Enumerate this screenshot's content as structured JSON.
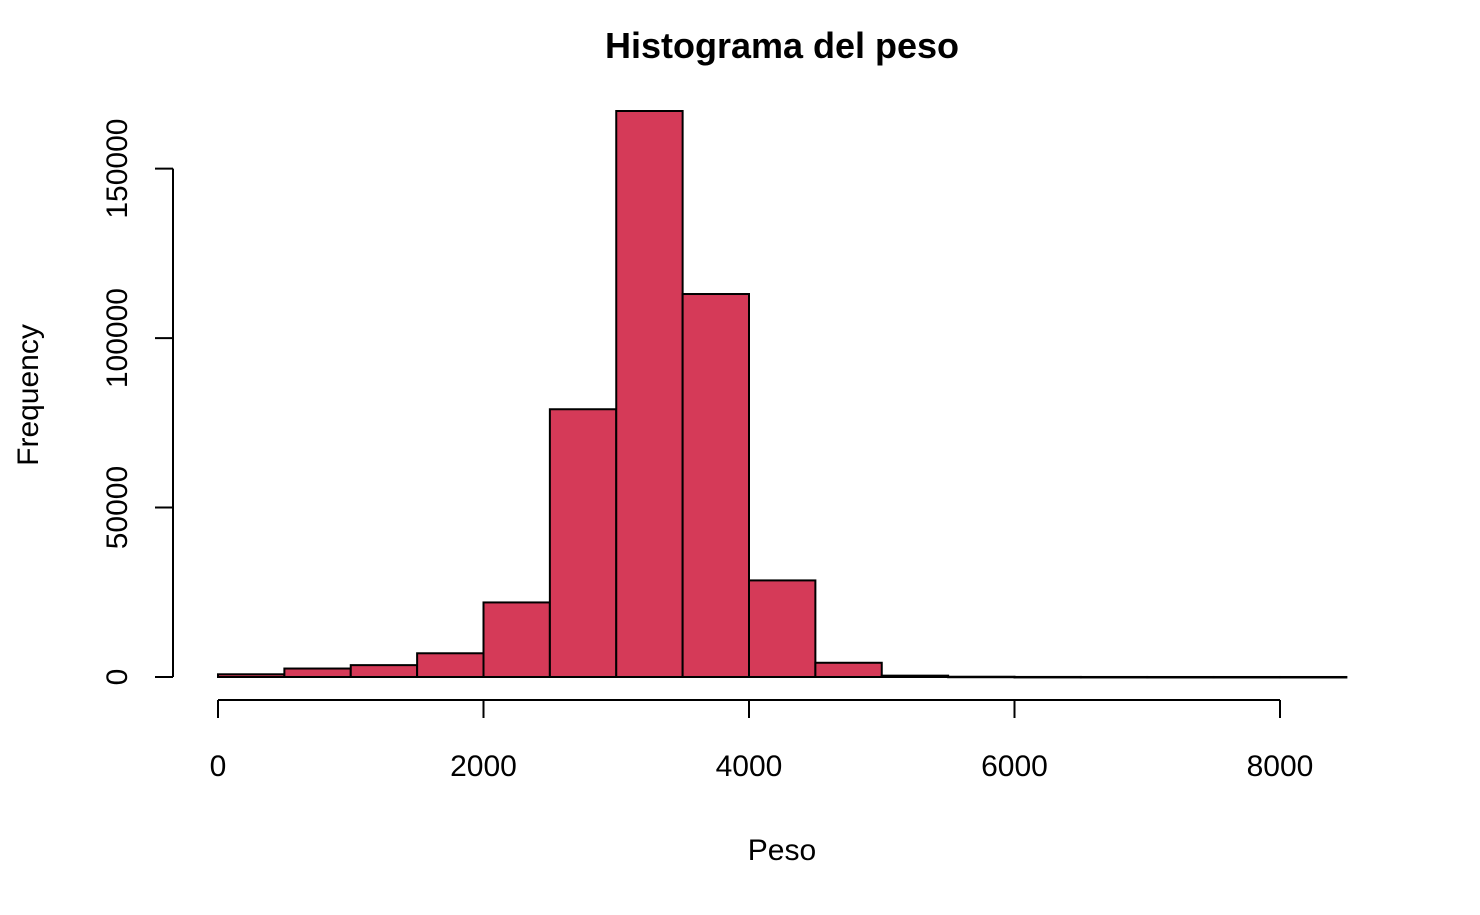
{
  "chart_data": {
    "type": "bar",
    "title": "Histograma del peso",
    "xlabel": "Peso",
    "ylabel": "Frequency",
    "bar_color": "#D53A58",
    "border_color": "#000000",
    "bin_edges": [
      0,
      500,
      1000,
      1500,
      2000,
      2500,
      3000,
      3500,
      4000,
      4500,
      5000,
      5500,
      6000,
      6500,
      7000,
      7500,
      8000,
      8500
    ],
    "values": [
      800,
      2500,
      3500,
      7000,
      22000,
      79000,
      167000,
      113000,
      28500,
      4200,
      400,
      80,
      20,
      10,
      5,
      5,
      5
    ],
    "xlim": [
      0,
      8500
    ],
    "ylim": [
      0,
      167000
    ],
    "x_ticks": [
      0,
      2000,
      4000,
      6000,
      8000
    ],
    "x_tick_labels": [
      "0",
      "2000",
      "4000",
      "6000",
      "8000"
    ],
    "y_ticks": [
      0,
      50000,
      100000,
      150000
    ],
    "y_tick_labels": [
      "0",
      "50000",
      "100000",
      "150000"
    ],
    "grid": false,
    "legend": "none"
  }
}
